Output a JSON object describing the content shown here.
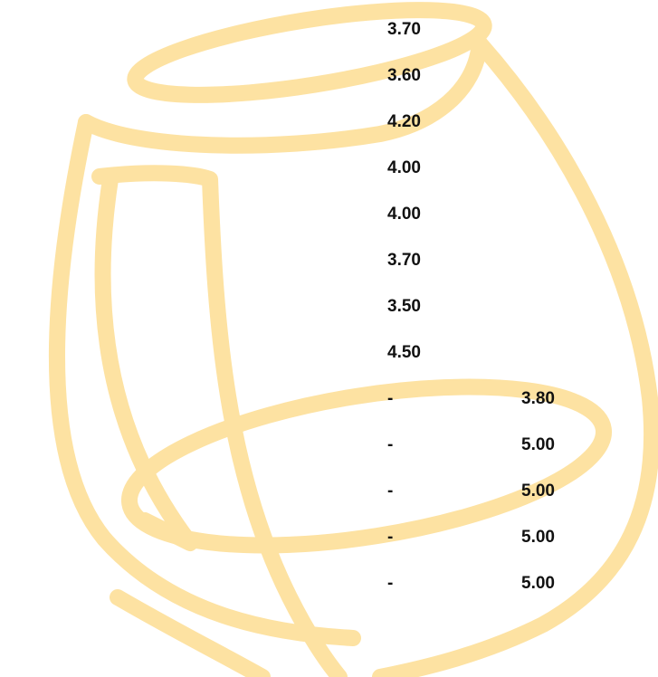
{
  "table": {
    "rows": [
      {
        "a": "3.70"
      },
      {
        "a": "3.60"
      },
      {
        "a": "4.20"
      },
      {
        "a": "4.00"
      },
      {
        "a": "4.00"
      },
      {
        "a": "3.70"
      },
      {
        "a": "3.50"
      },
      {
        "a": "4.50"
      },
      {
        "a": "-",
        "b": "3.80"
      },
      {
        "a": "-",
        "b": "5.00"
      },
      {
        "a": "-",
        "b": "5.00"
      },
      {
        "a": "-",
        "b": "5.00"
      },
      {
        "a": "-",
        "b": "5.00"
      }
    ]
  }
}
